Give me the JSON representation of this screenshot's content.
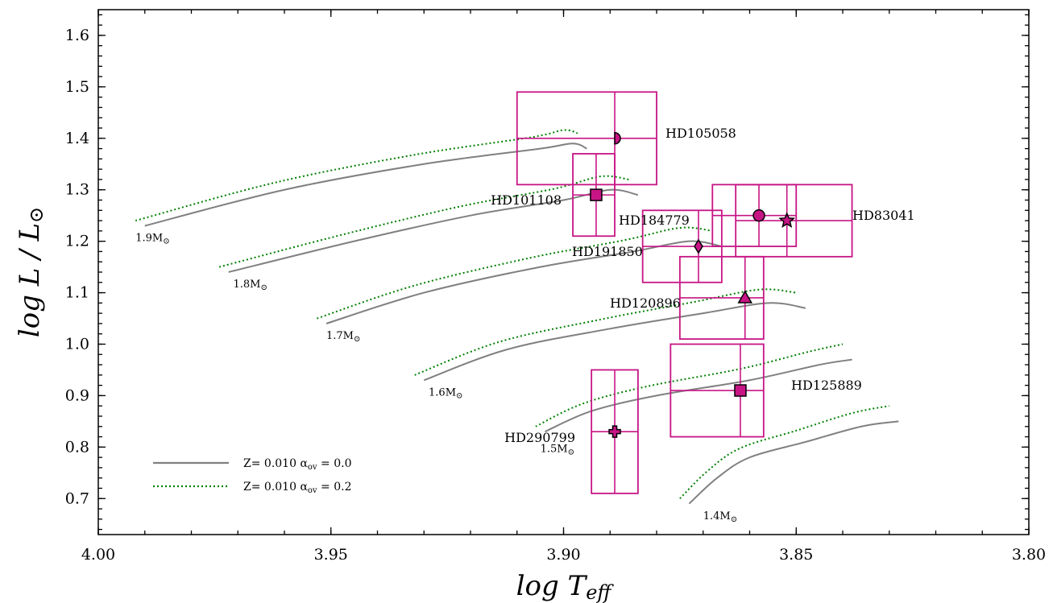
{
  "chart_data": {
    "type": "scatter",
    "title": "",
    "xlabel": "log T",
    "xlabel_sub": "eff",
    "ylabel": "log L / L",
    "ylabel_sub": "⊙",
    "xlim": [
      4.0,
      3.8
    ],
    "ylim": [
      0.63,
      1.65
    ],
    "x_inverted": true,
    "x_ticks": [
      4.0,
      3.95,
      3.9,
      3.85,
      3.8
    ],
    "x_tick_labels": [
      "4.00",
      "3.95",
      "3.90",
      "3.85",
      "3.80"
    ],
    "y_ticks": [
      0.7,
      0.8,
      0.9,
      1.0,
      1.1,
      1.2,
      1.3,
      1.4,
      1.5,
      1.6
    ],
    "y_tick_labels": [
      "0.7",
      "0.8",
      "0.9",
      "1.0",
      "1.1",
      "1.2",
      "1.3",
      "1.4",
      "1.5",
      "1.6"
    ],
    "grid": false,
    "legend_position": "bottom-left",
    "legend": [
      {
        "label": "Z= 0.010 α",
        "sub": "ov",
        "tail": " = 0.0",
        "color": "#808080",
        "dash": "solid"
      },
      {
        "label": "Z= 0.010 α",
        "sub": "ov",
        "tail": " = 0.2",
        "color": "#008000",
        "dash": "dotted"
      }
    ],
    "marker_color": "#c71585",
    "stars": [
      {
        "name": "HD105058",
        "x": 3.889,
        "y": 1.4,
        "marker": "half-circle",
        "err_x": [
          3.91,
          3.88,
          3.9,
          3.89
        ],
        "err_y": [
          1.31,
          1.49,
          1.31,
          1.49
        ]
      },
      {
        "name": "HD101108",
        "x": 3.893,
        "y": 1.29,
        "marker": "square",
        "err_x": [
          3.898,
          3.889,
          3.898,
          3.889
        ],
        "err_y": [
          1.21,
          1.37,
          1.21,
          1.37
        ]
      },
      {
        "name": "HD184779",
        "x": 3.858,
        "y": 1.25,
        "marker": "circle",
        "err_x": [
          3.868,
          3.85,
          3.868,
          3.85
        ],
        "err_y": [
          1.19,
          1.31,
          1.19,
          1.31
        ]
      },
      {
        "name": "HD83041",
        "x": 3.852,
        "y": 1.24,
        "marker": "star",
        "err_x": [
          3.863,
          3.838,
          3.863,
          3.838
        ],
        "err_y": [
          1.17,
          1.31,
          1.17,
          1.31
        ]
      },
      {
        "name": "HD191850",
        "x": 3.871,
        "y": 1.19,
        "marker": "diamond",
        "err_x": [
          3.883,
          3.866,
          3.883,
          3.866
        ],
        "err_y": [
          1.12,
          1.26,
          1.12,
          1.26
        ]
      },
      {
        "name": "HD120896",
        "x": 3.861,
        "y": 1.09,
        "marker": "triangle",
        "err_x": [
          3.875,
          3.857,
          3.875,
          3.857
        ],
        "err_y": [
          1.01,
          1.17,
          1.01,
          1.17
        ]
      },
      {
        "name": "HD125889",
        "x": 3.862,
        "y": 0.91,
        "marker": "square",
        "err_x": [
          3.877,
          3.857,
          3.877,
          3.857
        ],
        "err_y": [
          0.82,
          1.0,
          0.82,
          1.0
        ]
      },
      {
        "name": "HD290799",
        "x": 3.889,
        "y": 0.83,
        "marker": "plus",
        "err_x": [
          3.894,
          3.884,
          3.894,
          3.884
        ],
        "err_y": [
          0.71,
          0.95,
          0.71,
          0.95
        ]
      }
    ],
    "tracks": [
      {
        "mass": "1.9",
        "x": [
          3.99,
          3.96,
          3.93,
          3.905,
          3.898,
          3.895
        ],
        "y": [
          1.23,
          1.3,
          1.35,
          1.38,
          1.39,
          1.38
        ]
      },
      {
        "mass": "1.8",
        "x": [
          3.972,
          3.945,
          3.92,
          3.9,
          3.89,
          3.884
        ],
        "y": [
          1.14,
          1.2,
          1.25,
          1.28,
          1.3,
          1.29
        ]
      },
      {
        "mass": "1.7",
        "x": [
          3.951,
          3.93,
          3.905,
          3.885,
          3.873,
          3.866
        ],
        "y": [
          1.04,
          1.1,
          1.15,
          1.18,
          1.2,
          1.19
        ]
      },
      {
        "mass": "1.6",
        "x": [
          3.93,
          3.912,
          3.89,
          3.87,
          3.856,
          3.848
        ],
        "y": [
          0.93,
          0.99,
          1.03,
          1.06,
          1.08,
          1.07
        ]
      },
      {
        "mass": "1.5",
        "x": [
          3.904,
          3.894,
          3.88,
          3.86,
          3.845,
          3.838
        ],
        "y": [
          0.83,
          0.87,
          0.9,
          0.93,
          0.96,
          0.97
        ]
      },
      {
        "mass": "1.4",
        "x": [
          3.873,
          3.867,
          3.86,
          3.848,
          3.836,
          3.828
        ],
        "y": [
          0.69,
          0.74,
          0.78,
          0.81,
          0.84,
          0.85
        ]
      }
    ],
    "track_labels": [
      {
        "text": "1.9M",
        "x": 3.992,
        "y": 1.2
      },
      {
        "text": "1.8M",
        "x": 3.971,
        "y": 1.11
      },
      {
        "text": "1.7M",
        "x": 3.951,
        "y": 1.01
      },
      {
        "text": "1.6M",
        "x": 3.929,
        "y": 0.9
      },
      {
        "text": "1.5M",
        "x": 3.905,
        "y": 0.79
      },
      {
        "text": "1.4M",
        "x": 3.87,
        "y": 0.66
      }
    ]
  }
}
